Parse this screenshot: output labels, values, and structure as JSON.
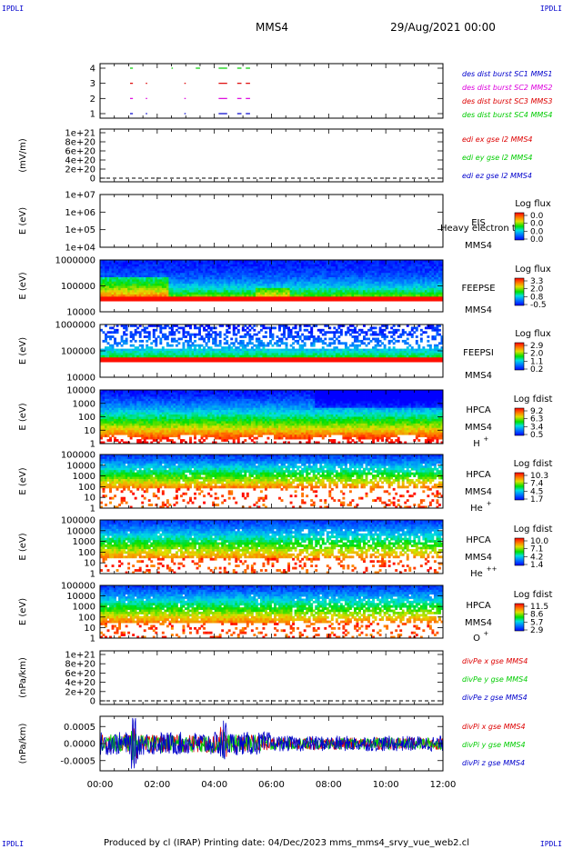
{
  "corners": {
    "tl": "IPDLI",
    "tr": "IPDLI",
    "bl": "IPDLI",
    "br": "IPDLI"
  },
  "header": {
    "spacecraft": "MMS4",
    "date": "29/Aug/2021 00:00"
  },
  "footer": {
    "text": "Produced by cl (IRAP)    Printing date: 04/Dec/2023    mms_mms4_srvy_vue_web2.cl"
  },
  "colors": {
    "red": "#dd0000",
    "green": "#00cc00",
    "blue": "#0000cc",
    "magenta": "#dd00dd",
    "black": "#000000"
  },
  "time_axis": {
    "ticks": [
      "00:00",
      "02:00",
      "04:00",
      "06:00",
      "08:00",
      "10:00",
      "12:00"
    ]
  },
  "chart_data": [
    {
      "id": "burst",
      "type": "line",
      "yticks": [
        "4",
        "3",
        "2",
        "1"
      ],
      "legend": [
        {
          "text": "des dist burst SC1 MMS1",
          "color": "#0000cc"
        },
        {
          "text": "des dist burst SC2 MMS2",
          "color": "#dd00dd"
        },
        {
          "text": "des dist burst SC3 MMS3",
          "color": "#dd0000"
        },
        {
          "text": "des dist burst SC4 MMS4",
          "color": "#00cc00"
        }
      ],
      "series": [
        {
          "level": 4,
          "color": "#00cc00",
          "intervals": [
            [
              1.05,
              1.15
            ],
            [
              2.5,
              2.55
            ],
            [
              3.35,
              3.5
            ],
            [
              4.15,
              4.45
            ],
            [
              4.8,
              4.95
            ],
            [
              5.1,
              5.25
            ]
          ]
        },
        {
          "level": 3,
          "color": "#dd0000",
          "intervals": [
            [
              1.05,
              1.15
            ],
            [
              1.6,
              1.65
            ],
            [
              2.95,
              3.0
            ],
            [
              4.15,
              4.45
            ],
            [
              4.8,
              4.95
            ],
            [
              5.1,
              5.25
            ]
          ]
        },
        {
          "level": 2,
          "color": "#dd00dd",
          "intervals": [
            [
              1.05,
              1.15
            ],
            [
              1.6,
              1.65
            ],
            [
              2.95,
              3.0
            ],
            [
              4.15,
              4.45
            ],
            [
              4.8,
              4.95
            ],
            [
              5.1,
              5.25
            ]
          ]
        },
        {
          "level": 1,
          "color": "#0000cc",
          "intervals": [
            [
              1.05,
              1.15
            ],
            [
              1.6,
              1.65
            ],
            [
              2.95,
              3.0
            ],
            [
              4.15,
              4.45
            ],
            [
              4.8,
              4.95
            ],
            [
              5.1,
              5.25
            ]
          ]
        }
      ]
    },
    {
      "id": "edi",
      "type": "line",
      "ylabel": "(mV/m)",
      "yticks": [
        "1e+21",
        "8e+20",
        "6e+20",
        "4e+20",
        "2e+20",
        "0"
      ],
      "legend": [
        {
          "text": "edi ex gse l2 MMS4",
          "color": "#dd0000"
        },
        {
          "text": "edi ey gse l2 MMS4",
          "color": "#00cc00"
        },
        {
          "text": "edi ez gse l2 MMS4",
          "color": "#0000cc"
        }
      ]
    },
    {
      "id": "eis",
      "type": "heatmap",
      "ylabel": "E (eV)",
      "yticks": [
        "1e+07",
        "1e+06",
        "1e+05",
        "1e+04"
      ],
      "instrument": "EIS",
      "sc": "MMS4",
      "overlay": "Heavy electron to",
      "cbar_title": "Log flux",
      "cbar": [
        "0.0",
        "0.0",
        "0.0",
        "0.0"
      ]
    },
    {
      "id": "feepse",
      "type": "heatmap",
      "ylabel": "E (eV)",
      "yticks": [
        "1000000",
        "100000",
        "10000"
      ],
      "instrument": "FEEPSE",
      "sc": "MMS4",
      "cbar_title": "Log flux",
      "cbar": [
        "3.3",
        "2.0",
        "0.8",
        "-0.5"
      ]
    },
    {
      "id": "feepsi",
      "type": "heatmap",
      "ylabel": "E (eV)",
      "yticks": [
        "1000000",
        "100000",
        "10000"
      ],
      "instrument": "FEEPSI",
      "sc": "MMS4",
      "cbar_title": "Log flux",
      "cbar": [
        "2.9",
        "2.0",
        "1.1",
        "0.2"
      ]
    },
    {
      "id": "hpca_h",
      "type": "heatmap",
      "ylabel": "E (eV)",
      "yticks": [
        "10000",
        "1000",
        "100",
        "10",
        "1"
      ],
      "instrument": "HPCA",
      "sc": "MMS4",
      "species": "H",
      "charge": "+",
      "cbar_title": "Log fdist",
      "cbar": [
        "9.2",
        "6.3",
        "3.4",
        "0.5"
      ]
    },
    {
      "id": "hpca_he",
      "type": "heatmap",
      "ylabel": "E (eV)",
      "yticks": [
        "100000",
        "10000",
        "1000",
        "100",
        "10",
        "1"
      ],
      "instrument": "HPCA",
      "sc": "MMS4",
      "species": "He",
      "charge": "+",
      "cbar_title": "Log fdist",
      "cbar": [
        "10.3",
        "7.4",
        "4.5",
        "1.7"
      ]
    },
    {
      "id": "hpca_he2",
      "type": "heatmap",
      "ylabel": "E (eV)",
      "yticks": [
        "100000",
        "10000",
        "1000",
        "100",
        "10",
        "1"
      ],
      "instrument": "HPCA",
      "sc": "MMS4",
      "species": "He",
      "charge": "++",
      "cbar_title": "Log fdist",
      "cbar": [
        "10.0",
        "7.1",
        "4.2",
        "1.4"
      ]
    },
    {
      "id": "hpca_o",
      "type": "heatmap",
      "ylabel": "E (eV)",
      "yticks": [
        "100000",
        "10000",
        "1000",
        "100",
        "10",
        "1"
      ],
      "instrument": "HPCA",
      "sc": "MMS4",
      "species": "O",
      "charge": "+",
      "cbar_title": "Log fdist",
      "cbar": [
        "11.5",
        "8.6",
        "5.7",
        "2.9"
      ]
    },
    {
      "id": "divpe",
      "type": "line",
      "ylabel": "(nPa/km)",
      "yticks": [
        "1e+21",
        "8e+20",
        "6e+20",
        "4e+20",
        "2e+20",
        "0"
      ],
      "legend": [
        {
          "text": "divPe x gse MMS4",
          "color": "#dd0000"
        },
        {
          "text": "divPe y gse MMS4",
          "color": "#00cc00"
        },
        {
          "text": "divPe z gse MMS4",
          "color": "#0000cc"
        }
      ]
    },
    {
      "id": "divpi",
      "type": "line",
      "ylabel": "(nPa/km)",
      "yticks": [
        "0.0005",
        "0.0000",
        "-0.0005"
      ],
      "ylim": [
        -0.0008,
        0.0008
      ],
      "legend": [
        {
          "text": "divPi x gse MMS4",
          "color": "#dd0000"
        },
        {
          "text": "divPi y gse MMS4",
          "color": "#00cc00"
        },
        {
          "text": "divPi z gse MMS4",
          "color": "#0000cc"
        }
      ]
    }
  ]
}
